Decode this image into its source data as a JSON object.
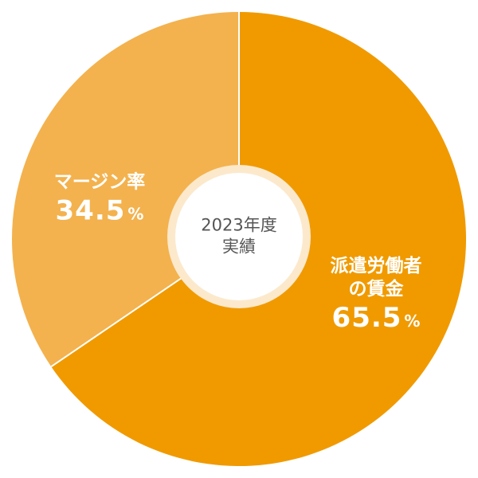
{
  "chart_data": {
    "type": "pie",
    "center_label": "2023年度\n実績",
    "categories": [
      "派遣労働者\nの賃金",
      "マージン率"
    ],
    "values": [
      65.5,
      34.5
    ],
    "unit": "%",
    "colors": [
      "#f09a00",
      "#f3b24e"
    ],
    "start_angle": -90,
    "direction": "clockwise"
  }
}
